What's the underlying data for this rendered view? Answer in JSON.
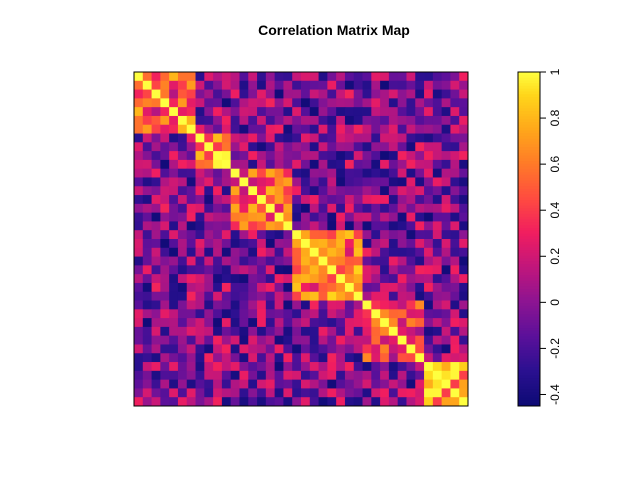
{
  "chart_data": {
    "type": "heatmap",
    "title": "Correlation Matrix Map",
    "size": 38,
    "value_range": [
      -0.45,
      1.0
    ],
    "colorbar": {
      "ticks": [
        1,
        0.8,
        0.6,
        0.4,
        0.2,
        0,
        -0.2,
        -0.4
      ],
      "tick_labels": [
        "1",
        "0.8",
        "0.6",
        "0.4",
        "0.2",
        "0",
        "-0.2",
        "-0.4"
      ]
    },
    "color_stops": [
      {
        "v": -0.45,
        "color": "#0c0a74"
      },
      {
        "v": -0.3,
        "color": "#2a1090"
      },
      {
        "v": -0.15,
        "color": "#5a109a"
      },
      {
        "v": 0.0,
        "color": "#8c1492"
      },
      {
        "v": 0.15,
        "color": "#c0167c"
      },
      {
        "v": 0.3,
        "color": "#f01d60"
      },
      {
        "v": 0.45,
        "color": "#ff4b40"
      },
      {
        "v": 0.6,
        "color": "#ff7a28"
      },
      {
        "v": 0.75,
        "color": "#ffa71a"
      },
      {
        "v": 0.9,
        "color": "#ffd61a"
      },
      {
        "v": 1.0,
        "color": "#ffff40"
      }
    ],
    "groups": [
      {
        "range": [
          0,
          7
        ],
        "within": 0.45
      },
      {
        "range": [
          7,
          11
        ],
        "within": 0.7
      },
      {
        "range": [
          11,
          18
        ],
        "within": 0.5
      },
      {
        "range": [
          18,
          26
        ],
        "within": 0.55
      },
      {
        "range": [
          26,
          33
        ],
        "within": 0.35
      },
      {
        "range": [
          33,
          38
        ],
        "within": 0.75
      }
    ],
    "background_value": -0.05,
    "grid": false,
    "legend_position": "right"
  }
}
